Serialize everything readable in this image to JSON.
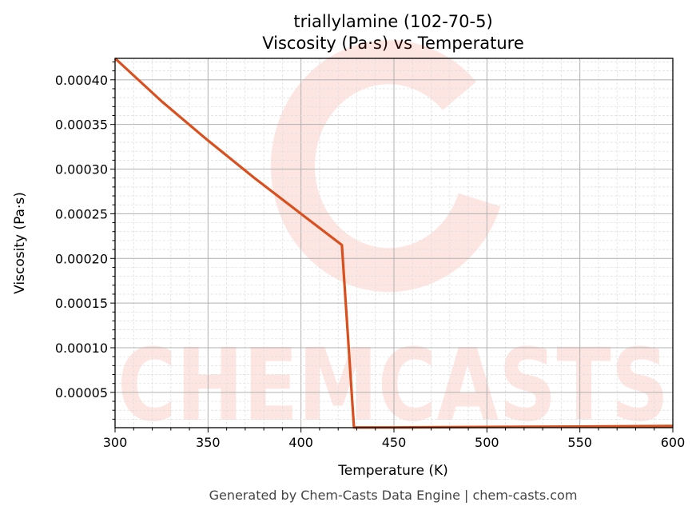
{
  "chart_data": {
    "type": "line",
    "title": "triallylamine (102-70-5)",
    "subtitle": "Viscosity (Pa·s) vs Temperature",
    "xlabel": "Temperature (K)",
    "ylabel": "Viscosity (Pa·s)",
    "xlim": [
      300,
      600
    ],
    "ylim": [
      1.05e-05,
      0.000424
    ],
    "xticks": [
      "300",
      "350",
      "400",
      "450",
      "500",
      "550",
      "600"
    ],
    "yticks": [
      "0.00005",
      "0.00010",
      "0.00015",
      "0.00020",
      "0.00025",
      "0.00030",
      "0.00035",
      "0.00040"
    ],
    "grid": true,
    "line_color": "#d9501e",
    "series": [
      {
        "x": [
          300,
          325,
          350,
          375,
          400,
          422,
          428.5,
          450,
          500,
          550,
          600
        ],
        "y": [
          0.000424,
          0.000376,
          0.000332,
          0.00029,
          0.00025,
          0.000215,
          1.07e-05,
          1.08e-05,
          1.13e-05,
          1.18e-05,
          1.24e-05
        ]
      }
    ],
    "watermark": "CHEMCASTS"
  },
  "footer": "Generated by Chem-Casts Data Engine | chem-casts.com"
}
